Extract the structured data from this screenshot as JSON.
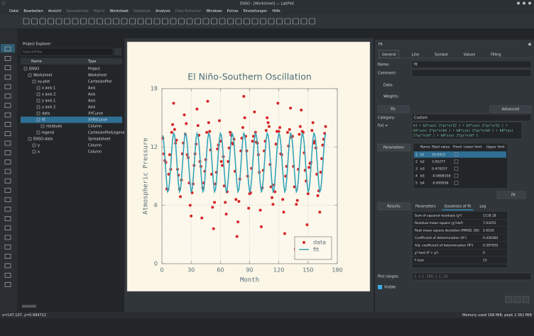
{
  "window_title": "ENSO - [Worksheet] — LabPlot",
  "menu": [
    {
      "label": "Datei",
      "enabled": true
    },
    {
      "label": "Bearbeiten",
      "enabled": true
    },
    {
      "label": "Ansicht",
      "enabled": true
    },
    {
      "label": "Spreadsheet",
      "enabled": false
    },
    {
      "label": "Matrix",
      "enabled": false
    },
    {
      "label": "Worksheet",
      "enabled": true
    },
    {
      "label": "Notebook",
      "enabled": false
    },
    {
      "label": "Analysis",
      "enabled": true
    },
    {
      "label": "Data Extractor",
      "enabled": false
    },
    {
      "label": "Windows",
      "enabled": true
    },
    {
      "label": "Extras",
      "enabled": true
    },
    {
      "label": "Einstellungen",
      "enabled": true
    },
    {
      "label": "Hilfe",
      "enabled": true
    }
  ],
  "explorer": {
    "title": "Project Explorer",
    "search_placeholder": "Search/Filter",
    "columns": [
      "Name",
      "Type"
    ],
    "rows": [
      [
        "ENSO",
        "Project"
      ],
      [
        "Worksheet",
        "Worksheet"
      ],
      [
        "xy-plot",
        "CartesianPlot"
      ],
      [
        "x axis 1",
        "Axis"
      ],
      [
        "x axis 2",
        "Axis"
      ],
      [
        "y axis 1",
        "Axis"
      ],
      [
        "y axis 2",
        "Axis"
      ],
      [
        "data",
        "XYCurve"
      ],
      [
        "fit",
        "XYFitCurve"
      ],
      [
        "residuals",
        "Column"
      ],
      [
        "legend",
        "CartesianPlotLegend"
      ],
      [
        "ENSO-data",
        "Spreadsheet"
      ],
      [
        "y",
        "Column"
      ],
      [
        "x",
        "Column"
      ]
    ],
    "selected_row": 8
  },
  "fit_dock": {
    "title": "Fit",
    "tabs": [
      "General",
      "Line",
      "Symbol",
      "Values",
      "Filling"
    ],
    "name_label": "Name:",
    "name_value": "fit",
    "comment_label": "Comment:",
    "data_label": "Data:",
    "weights_label": "Weights:",
    "fit_section": "Fit:",
    "advanced": "Advanced",
    "category_label": "Category:",
    "category_value": "Custom",
    "fx_label": "f(x) =",
    "formula_lines": [
      "b1 + b2*cos( 2*pi*x/12 ) + b3*sin( 2*pi*x/12 ) +",
      "b5*cos( 2*pi*x/b4 ) + b6*sin( 2*pi*x/b4 ) + b8*cos(",
      "2*pi*x/b7 ) + b9*sin( 2*pi*x/b7 )"
    ],
    "parameters_label": "Parameters:",
    "param_columns": [
      "Name",
      "Start value",
      "Fixed",
      "Lower limit",
      "Upper limit"
    ],
    "param_rows": [
      [
        1,
        "b1",
        10.6415
      ],
      [
        2,
        "b2",
        3.05277
      ],
      [
        3,
        "b3",
        0.479257
      ],
      [
        4,
        "b5",
        -0.0808158
      ],
      [
        5,
        "b4",
        -0.695936
      ]
    ],
    "fit_button": "Fit",
    "results_label": "Results:",
    "result_tabs": [
      "Parameters",
      "Goodness of fit",
      "Log"
    ],
    "results": [
      [
        "Sum of squared residuals (χ²)",
        1118.18
      ],
      [
        "Residual mean square (χ²/dof)",
        7.03255
      ],
      [
        "Root mean square deviation (RMSD, SD)",
        2.6519
      ],
      [
        "Coefficient of determination (R²)",
        0.430382
      ],
      [
        "Adj. coefficient of determination (R̄²)",
        0.397935
      ],
      [
        "χ²-test (P > χ²)",
        0
      ],
      [
        "F-test",
        15
      ]
    ],
    "plot_ranges_label": "Plot ranges:",
    "plot_ranges_value": "1: x 1..180, y 1..18",
    "visible_label": "Visible"
  },
  "status": {
    "left": "x=147.107, y=0.994722",
    "right": "Memory used 168 MiB, peak 2.362 MiB"
  },
  "chart_data": {
    "type": "scatter",
    "title": "El Niño-Southern Oscillation",
    "xlabel": "Month",
    "ylabel": "Atmospheric Pressure",
    "xlim": [
      0,
      180
    ],
    "xticks": [
      0,
      30,
      60,
      90,
      120,
      150,
      180
    ],
    "ylim": [
      0,
      18
    ],
    "yticks": [
      0,
      6,
      12,
      18
    ],
    "grid": true,
    "legend": "lower right",
    "x": [
      1,
      2,
      3,
      4,
      5,
      6,
      7,
      8,
      9,
      10,
      11,
      12,
      13,
      14,
      15,
      16,
      17,
      18,
      19,
      20,
      21,
      22,
      23,
      24,
      25,
      26,
      27,
      28,
      29,
      30,
      31,
      32,
      33,
      34,
      35,
      36,
      37,
      38,
      39,
      40,
      41,
      42,
      43,
      44,
      45,
      46,
      47,
      48,
      49,
      50,
      51,
      52,
      53,
      54,
      55,
      56,
      57,
      58,
      59,
      60,
      61,
      62,
      63,
      64,
      65,
      66,
      67,
      68,
      69,
      70,
      71,
      72,
      73,
      74,
      75,
      76,
      77,
      78,
      79,
      80,
      81,
      82,
      83,
      84,
      85,
      86,
      87,
      88,
      89,
      90,
      91,
      92,
      93,
      94,
      95,
      96,
      97,
      98,
      99,
      100,
      101,
      102,
      103,
      104,
      105,
      106,
      107,
      108,
      109,
      110,
      111,
      112,
      113,
      114,
      115,
      116,
      117,
      118,
      119,
      120,
      121,
      122,
      123,
      124,
      125,
      126,
      127,
      128,
      129,
      130,
      131,
      132,
      133,
      134,
      135,
      136,
      137,
      138,
      139,
      140,
      141,
      142,
      143,
      144,
      145,
      146,
      147,
      148,
      149,
      150,
      151,
      152,
      153,
      154,
      155,
      156,
      157,
      158,
      159,
      160,
      161,
      162,
      163,
      164,
      165,
      166,
      167,
      168
    ],
    "series": [
      {
        "name": "data",
        "type": "scatter",
        "color": "#d62728",
        "values": [
          12.9,
          11.3,
          10.6,
          10.4,
          7.7,
          7.6,
          9.2,
          11.2,
          9.7,
          13.5,
          14.3,
          16.5,
          13.8,
          12.4,
          12.7,
          9.7,
          9.1,
          7.7,
          6.9,
          8.6,
          11.3,
          12.4,
          15.3,
          13.3,
          14.4,
          11.2,
          10.9,
          8.3,
          6.0,
          4.9,
          7.3,
          8.2,
          10.1,
          11.3,
          12.3,
          15.9,
          14.2,
          13.2,
          10.5,
          10.0,
          4.7,
          7.8,
          8.3,
          9.5,
          10.7,
          13.5,
          16.7,
          14.5,
          13.6,
          11.7,
          9.2,
          5.8,
          3.6,
          6.3,
          8.2,
          9.4,
          11.8,
          12.2,
          14.7,
          12.6,
          10.5,
          10.1,
          11.0,
          8.0,
          6.3,
          5.1,
          7.4,
          10.5,
          11.9,
          13.5,
          13.2,
          12.4,
          12.3,
          12.8,
          9.5,
          6.6,
          2.8,
          4.3,
          6.4,
          8.7,
          11.6,
          12.9,
          14.0,
          17.2,
          15.0,
          13.1,
          11.6,
          9.0,
          5.7,
          7.2,
          7.3,
          9.8,
          12.6,
          13.1,
          15.6,
          13.5,
          12.5,
          12.4,
          11.2,
          9.4,
          5.5,
          3.8,
          7.8,
          9.6,
          11.6,
          12.6,
          13.7,
          15.0,
          14.5,
          14.1,
          10.2,
          7.9,
          6.8,
          6.1,
          8.1,
          7.4,
          12.3,
          13.6,
          16.5,
          13.6,
          14.0,
          11.3,
          11.2,
          6.6,
          5.3,
          3.1,
          9.0,
          10.0,
          13.5,
          12.1,
          13.8,
          16.0,
          13.0,
          13.1,
          10.0,
          7.9,
          1.5,
          6.1,
          6.5,
          9.7,
          13.3,
          14.1,
          15.8,
          13.6,
          13.5,
          11.4,
          9.6,
          8.5,
          4.0,
          7.2,
          9.9,
          10.3,
          10.4,
          13.7,
          14.5,
          12.4,
          12.6,
          11.9,
          9.2,
          7.0,
          7.5,
          5.3,
          9.4,
          10.8,
          12.2,
          12.8,
          13.4,
          14.1
        ]
      },
      {
        "name": "fit",
        "type": "line",
        "color": "#35a4b8",
        "values": [
          13.2,
          12.4,
          11.0,
          9.5,
          8.2,
          7.4,
          7.6,
          8.6,
          10.0,
          11.5,
          12.8,
          13.4,
          13.2,
          12.4,
          11.0,
          9.5,
          8.2,
          7.4,
          7.6,
          8.6,
          10.0,
          11.5,
          12.8,
          13.4,
          13.2,
          12.4,
          11.0,
          9.5,
          8.2,
          7.4,
          7.6,
          8.6,
          10.0,
          11.5,
          12.8,
          13.4,
          13.2,
          12.4,
          11.0,
          9.5,
          8.2,
          7.4,
          7.6,
          8.6,
          10.0,
          11.5,
          12.8,
          13.4,
          13.2,
          12.4,
          11.0,
          9.5,
          8.2,
          7.4,
          7.6,
          8.6,
          10.0,
          11.5,
          12.8,
          13.4,
          13.2,
          12.4,
          11.0,
          9.5,
          8.2,
          7.4,
          7.6,
          8.6,
          10.0,
          11.5,
          12.8,
          13.4,
          13.2,
          12.4,
          11.0,
          9.5,
          8.2,
          7.4,
          7.6,
          8.6,
          10.0,
          11.5,
          12.8,
          13.4,
          13.2,
          12.4,
          11.0,
          9.5,
          8.2,
          7.4,
          7.6,
          8.6,
          10.0,
          11.5,
          12.8,
          13.4,
          13.2,
          12.4,
          11.0,
          9.5,
          8.2,
          7.4,
          7.6,
          8.6,
          10.0,
          11.5,
          12.8,
          13.4,
          13.2,
          12.4,
          11.0,
          9.5,
          8.2,
          7.4,
          7.6,
          8.6,
          10.0,
          11.5,
          12.8,
          13.4,
          13.2,
          12.4,
          11.0,
          9.5,
          8.2,
          7.4,
          7.6,
          8.6,
          10.0,
          11.5,
          12.8,
          13.4,
          13.2,
          12.4,
          11.0,
          9.5,
          8.2,
          7.4,
          7.6,
          8.6,
          10.0,
          11.5,
          12.8,
          13.4,
          13.2,
          12.4,
          11.0,
          9.5,
          8.2,
          7.4,
          7.6,
          8.6,
          10.0,
          11.5,
          12.8,
          13.4,
          13.2,
          12.4,
          11.0,
          9.5,
          8.2,
          7.4,
          7.6,
          8.6,
          10.0,
          11.5,
          12.8,
          13.4
        ]
      }
    ]
  }
}
